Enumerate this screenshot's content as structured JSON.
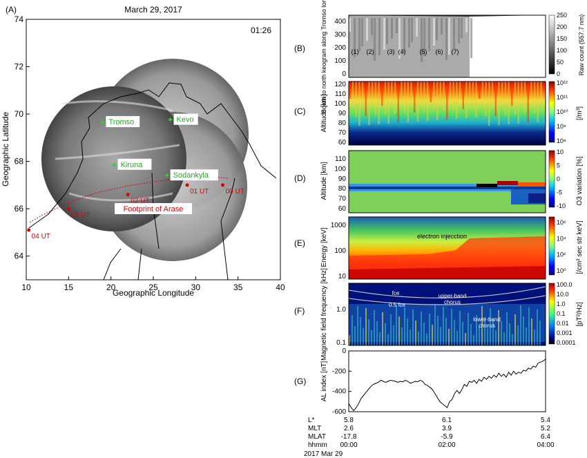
{
  "chart_data": [
    {
      "panel": "(A)",
      "type": "map",
      "title": "March 29, 2017",
      "time_label": "01:26",
      "xlabel": "Geographic Longitude",
      "ylabel": "Geographic Latitude",
      "xticks": [
        "10",
        "15",
        "20",
        "25",
        "30",
        "35",
        "40"
      ],
      "yticks": [
        "64",
        "66",
        "68",
        "70",
        "72",
        "74"
      ],
      "xlim": [
        10,
        40
      ],
      "ylim": [
        63,
        74
      ],
      "stations": [
        {
          "name": "Tromso",
          "lon": 19.0,
          "lat": 69.65
        },
        {
          "name": "Kevo",
          "lon": 27.0,
          "lat": 69.75
        },
        {
          "name": "Kiruna",
          "lon": 20.4,
          "lat": 67.85
        },
        {
          "name": "Sodankyla",
          "lon": 26.6,
          "lat": 67.4
        }
      ],
      "footprint_label": "Footprint of Arase",
      "footprint_points": [
        {
          "label": "04 UT",
          "lon": 10.3,
          "lat": 65.1
        },
        {
          "label": "03 UT",
          "lon": 15.0,
          "lat": 66.0
        },
        {
          "label": "02 UT",
          "lon": 22.0,
          "lat": 66.6
        },
        {
          "label": "01 UT",
          "lon": 29.0,
          "lat": 67.0
        },
        {
          "label": "00 UT",
          "lon": 33.2,
          "lat": 67.0
        }
      ]
    },
    {
      "panel": "(B)",
      "type": "heatmap",
      "ylabel": "South to north keogram along Tromso longitudes",
      "yticks": [
        "0",
        "100",
        "200",
        "300",
        "400"
      ],
      "colorbar_label": "Raw count (557.7 nm)",
      "colorbar_ticks": [
        "0",
        "50",
        "100",
        "150",
        "200",
        "250"
      ],
      "event_labels": [
        "(1)",
        "(2)",
        "(3)",
        "(4)",
        "(5)",
        "(6)",
        "(7)"
      ]
    },
    {
      "panel": "(C)",
      "type": "heatmap",
      "ylabel": "Altitude [km]",
      "yticks": [
        "60",
        "70",
        "80",
        "90",
        "100",
        "110",
        "120"
      ],
      "colorbar_label": "[/m³]",
      "colorbar_ticks": [
        "10⁸",
        "10⁹",
        "10¹⁰",
        "10¹¹",
        "10¹²"
      ]
    },
    {
      "panel": "(D)",
      "type": "heatmap",
      "ylabel": "Altitude [km]",
      "yticks": [
        "60",
        "70",
        "80",
        "90",
        "100",
        "110"
      ],
      "colorbar_label": "O3 variation [%]",
      "colorbar_ticks": [
        "-10",
        "-5",
        "0",
        "5",
        "10"
      ]
    },
    {
      "panel": "(E)",
      "type": "heatmap",
      "ylabel": "Energy [keV]",
      "yticks": [
        "10",
        "100",
        "1000"
      ],
      "annotation": "electron injecction",
      "colorbar_label": "[/cm² sec str keV]",
      "colorbar_ticks": [
        "10⁰",
        "10²",
        "10⁴",
        "10⁶"
      ]
    },
    {
      "panel": "(F)",
      "type": "heatmap",
      "ylabel": "Magnetic field frequency [kHz]",
      "yticks": [
        "0.1",
        "1.0"
      ],
      "annotations": [
        "fce",
        "0.5 fce",
        "upper-band chorus",
        "lower-band chorus"
      ],
      "colorbar_label": "[pT²/Hz]",
      "colorbar_ticks": [
        "100.0",
        "10.0",
        "1.0",
        "0.1",
        "0.01",
        "0.001",
        "0.0001"
      ]
    },
    {
      "panel": "(G)",
      "type": "line",
      "ylabel": "AL index [nT]",
      "yticks": [
        "-600",
        "-400",
        "-200",
        "0"
      ],
      "ylim": [
        -600,
        0
      ],
      "x_hours": [
        0,
        0.05,
        0.1,
        0.15,
        0.2,
        0.25,
        0.3,
        0.35,
        0.4,
        0.45,
        0.5,
        0.55,
        0.6,
        0.65,
        0.7,
        0.75,
        0.8,
        0.85,
        0.9,
        0.95,
        1.0,
        1.05,
        1.1,
        1.15,
        1.2,
        1.25,
        1.3,
        1.35,
        1.4,
        1.45,
        1.5,
        1.55,
        1.6,
        1.65,
        1.7,
        1.75,
        1.8,
        1.85,
        1.9,
        1.95,
        2.0,
        2.05,
        2.1,
        2.15,
        2.2,
        2.25,
        2.3,
        2.35,
        2.4,
        2.45,
        2.5,
        2.55,
        2.6,
        2.65,
        2.7,
        2.75,
        2.8,
        2.85,
        2.9,
        2.95,
        3.0,
        3.05,
        3.1,
        3.15,
        3.2,
        3.25,
        3.3,
        3.35,
        3.4,
        3.45,
        3.5,
        3.55,
        3.6,
        3.65,
        3.7,
        3.75,
        3.8,
        3.85,
        3.9,
        3.95,
        4.0
      ],
      "values": [
        -520,
        -560,
        -590,
        -560,
        -520,
        -470,
        -440,
        -410,
        -380,
        -350,
        -330,
        -320,
        -310,
        -290,
        -300,
        -310,
        -300,
        -290,
        -295,
        -300,
        -310,
        -300,
        -305,
        -290,
        -300,
        -320,
        -310,
        -300,
        -305,
        -290,
        -300,
        -330,
        -340,
        -360,
        -380,
        -420,
        -460,
        -500,
        -520,
        -540,
        -560,
        -500,
        -480,
        -420,
        -390,
        -420,
        -380,
        -330,
        -350,
        -300,
        -310,
        -290,
        -320,
        -280,
        -300,
        -260,
        -280,
        -250,
        -270,
        -240,
        -260,
        -220,
        -250,
        -230,
        -260,
        -210,
        -240,
        -200,
        -230,
        -210,
        -220,
        -190,
        -200,
        -170,
        -180,
        -150,
        -160,
        -120,
        -110,
        -100,
        -80
      ]
    }
  ],
  "orbit_table": {
    "labels": [
      "L*",
      "MLT",
      "MLAT",
      "hhmm"
    ],
    "columns": [
      {
        "values": [
          "5.8",
          "2.6",
          "-17.8",
          "00:00"
        ]
      },
      {
        "values": [
          "6.1",
          "3.9",
          "-5.9",
          "02:00"
        ]
      },
      {
        "values": [
          "5.4",
          "5.2",
          "6.4",
          "04:00"
        ]
      }
    ],
    "date": "2017 Mar 29"
  },
  "panel_labels": [
    "(A)",
    "(B)",
    "(C)",
    "(D)",
    "(E)",
    "(F)",
    "(G)"
  ]
}
